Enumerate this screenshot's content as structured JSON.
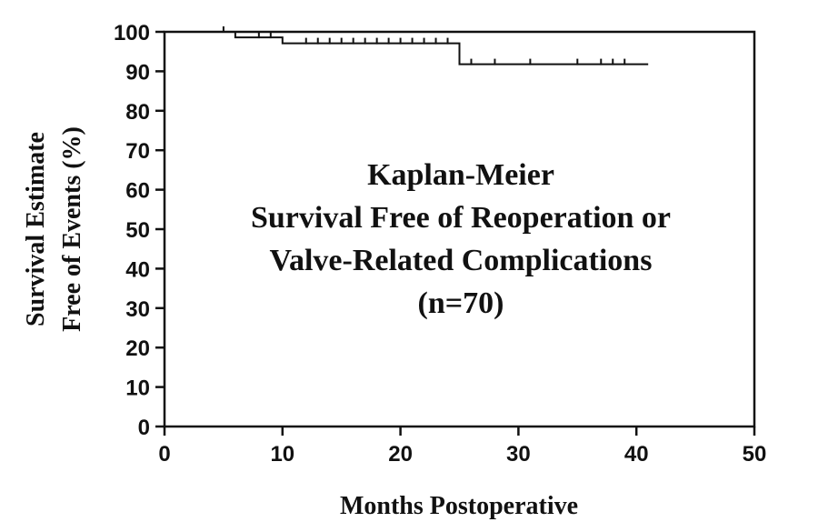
{
  "chart_data": {
    "type": "line",
    "step": true,
    "xlabel": "Months Postoperative",
    "ylabel_lines": [
      "Survival Estimate",
      "Free of Events (%)"
    ],
    "xlim": [
      0,
      50
    ],
    "ylim": [
      0,
      100
    ],
    "xticks": [
      "0",
      "10",
      "20",
      "30",
      "40",
      "50"
    ],
    "yticks": [
      "0",
      "10",
      "20",
      "30",
      "40",
      "50",
      "60",
      "70",
      "80",
      "90",
      "100"
    ],
    "grid": false,
    "legend": "none",
    "annotation_lines": [
      "Kaplan-Meier",
      "Survival Free of Reoperation or",
      "Valve-Related Complications",
      "(n=70)"
    ],
    "series": [
      {
        "x": [
          0,
          6,
          10,
          25,
          41
        ],
        "y": [
          100,
          98.6,
          97.1,
          91.8,
          91.8
        ],
        "censored": [
          [
            5,
            100
          ],
          [
            8,
            98.6
          ],
          [
            9,
            98.6
          ],
          [
            12,
            97.1
          ],
          [
            13,
            97.1
          ],
          [
            14,
            97.1
          ],
          [
            15,
            97.1
          ],
          [
            16,
            97.1
          ],
          [
            17,
            97.1
          ],
          [
            18,
            97.1
          ],
          [
            19,
            97.1
          ],
          [
            20,
            97.1
          ],
          [
            21,
            97.1
          ],
          [
            22,
            97.1
          ],
          [
            23,
            97.1
          ],
          [
            24,
            97.1
          ],
          [
            26,
            91.8
          ],
          [
            28,
            91.8
          ],
          [
            31,
            91.8
          ],
          [
            35,
            91.8
          ],
          [
            37,
            91.8
          ],
          [
            38,
            91.8
          ],
          [
            39,
            91.8
          ]
        ]
      }
    ]
  }
}
